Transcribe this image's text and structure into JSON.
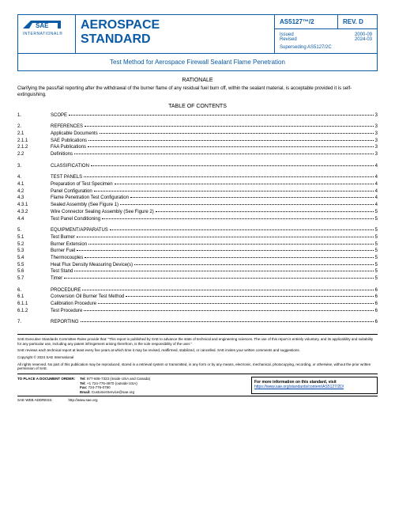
{
  "header": {
    "org_name": "INTERNATIONAL",
    "org_mark": "®",
    "doc_type_line1": "AEROSPACE",
    "doc_type_line2": "STANDARD",
    "doc_id": "AS5127™/2",
    "rev": "REV. D",
    "issued_label": "Issued",
    "issued": "2000-09",
    "revised_label": "Revised",
    "revised": "2024-03",
    "supersede": "Superseding AS5127/2C",
    "subtitle": "Test Method for Aerospace Firewall Sealant Flame Penetration"
  },
  "rationale_title": "RATIONALE",
  "rationale": "Clarifying the pass/fail reporting after the withdrawal of the burner flame of any residual fuel burn off, within the sealant material, is acceptable provided it is self-extinguishing.",
  "toc_title": "TABLE OF CONTENTS",
  "toc": [
    {
      "n": "1.",
      "t": "SCOPE",
      "p": "3",
      "gap": true
    },
    {
      "n": "2.",
      "t": "REFERENCES",
      "p": "3"
    },
    {
      "n": "2.1",
      "t": "Applicable Documents",
      "p": "3"
    },
    {
      "n": "2.1.1",
      "t": "SAE Publications",
      "p": "3"
    },
    {
      "n": "2.1.2",
      "t": "FAA Publications",
      "p": "3"
    },
    {
      "n": "2.2",
      "t": "Definitions",
      "p": "3",
      "gap": true
    },
    {
      "n": "3.",
      "t": "CLASSIFICATION",
      "p": "4",
      "gap": true
    },
    {
      "n": "4.",
      "t": "TEST PANELS",
      "p": "4"
    },
    {
      "n": "4.1",
      "t": "Preparation of Test Specimen",
      "p": "4"
    },
    {
      "n": "4.2",
      "t": "Panel Configuration",
      "p": "4"
    },
    {
      "n": "4.3",
      "t": "Flame Penetration Test Configuration",
      "p": "4"
    },
    {
      "n": "4.3.1",
      "t": "Sealed Assembly (See Figure 1)",
      "p": "4"
    },
    {
      "n": "4.3.2",
      "t": "Wire Connector Sealing Assembly (See Figure 2)",
      "p": "5"
    },
    {
      "n": "4.4",
      "t": "Test Panel Conditioning",
      "p": "5",
      "gap": true
    },
    {
      "n": "5.",
      "t": "EQUIPMENT/APPARATUS",
      "p": "5"
    },
    {
      "n": "5.1",
      "t": "Test Burner",
      "p": "5"
    },
    {
      "n": "5.2",
      "t": "Burner Extension",
      "p": "5"
    },
    {
      "n": "5.3",
      "t": "Burner Fuel",
      "p": "5"
    },
    {
      "n": "5.4",
      "t": "Thermocouples",
      "p": "5"
    },
    {
      "n": "5.5",
      "t": "Heat Flux Density Measuring Device(s)",
      "p": "5"
    },
    {
      "n": "5.6",
      "t": "Test Stand",
      "p": "5"
    },
    {
      "n": "5.7",
      "t": "Timer",
      "p": "5",
      "gap": true
    },
    {
      "n": "6.",
      "t": "PROCEDURE",
      "p": "6"
    },
    {
      "n": "6.1",
      "t": "Conversion Oil Burner Test Method",
      "p": "6"
    },
    {
      "n": "6.1.1",
      "t": "Calibration Procedure",
      "p": "6"
    },
    {
      "n": "6.1.2",
      "t": "Test Procedure",
      "p": "6",
      "gap": true
    },
    {
      "n": "7.",
      "t": "REPORTING",
      "p": "6"
    }
  ],
  "footer": {
    "p1": "SAE Executive Standards Committee Rules provide that: \"This report is published by SAE to advance the state of technical and engineering sciences. The use of this report is entirely voluntary, and its applicability and suitability for any particular use, including any patent infringement arising therefrom, is the sole responsibility of the user.\"",
    "p2": "SAE reviews each technical report at least every five years at which time it may be revised, reaffirmed, stabilized, or cancelled. SAE invites your written comments and suggestions.",
    "p3": "Copyright © 2024 SAE International",
    "p4": "All rights reserved. No part of this publication may be reproduced, stored in a retrieval system or transmitted, in any form or by any means, electronic, mechanical, photocopying, recording, or otherwise, without the prior written permission of SAE.",
    "order_label": "TO PLACE A DOCUMENT ORDER:",
    "tel_label": "Tel:",
    "tel1": "877-606-7323 (inside USA and Canada)",
    "tel2_label": "Tel:",
    "tel2": "+1 724-776-4970 (outside USA)",
    "fax_label": "Fax:",
    "fax": "724-776-0790",
    "email_label": "Email:",
    "email": "CustomerService@sae.org",
    "info": "For more information on this standard, visit",
    "url": "https://www.sae.org/standards/content/AS5127/2D/",
    "web_label": "SAE WEB ADDRESS:",
    "web": "http://www.sae.org"
  }
}
